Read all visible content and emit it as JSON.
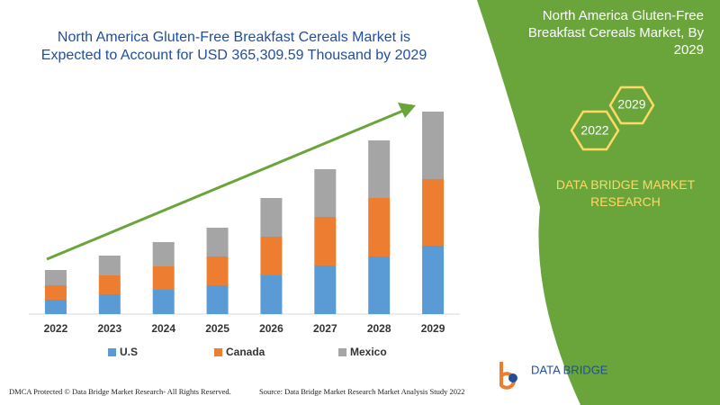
{
  "chart_data": {
    "type": "stacked_bar",
    "title": "North America Gluten-Free Breakfast Cereals Market is Expected to Account for USD 365,309.59 Thousand by 2029",
    "categories": [
      "2022",
      "2023",
      "2024",
      "2025",
      "2026",
      "2027",
      "2028",
      "2029"
    ],
    "series": [
      {
        "name": "U.S",
        "color": "#5b9bd5",
        "values": [
          16,
          22,
          27,
          32,
          43,
          54,
          64,
          76
        ]
      },
      {
        "name": "Canada",
        "color": "#ed7d31",
        "values": [
          16,
          21,
          26,
          32,
          43,
          54,
          65,
          74
        ]
      },
      {
        "name": "Mexico",
        "color": "#a5a5a5",
        "values": [
          17,
          22,
          27,
          32,
          43,
          53,
          64,
          75
        ]
      }
    ],
    "ylim": [
      0,
      225
    ]
  },
  "panel": {
    "title": "North America Gluten-Free Breakfast Cereals Market, By 2029",
    "hex_labels": [
      "2022",
      "2029"
    ],
    "brand": "DATA BRIDGE MARKET RESEARCH"
  },
  "logo": {
    "text": "DATA BRIDGE"
  },
  "footer": {
    "left": "DMCA Protected © Data Bridge Market Research- All Rights Reserved.",
    "right": "Source: Data Bridge Market Research Market Analysis Study 2022"
  }
}
